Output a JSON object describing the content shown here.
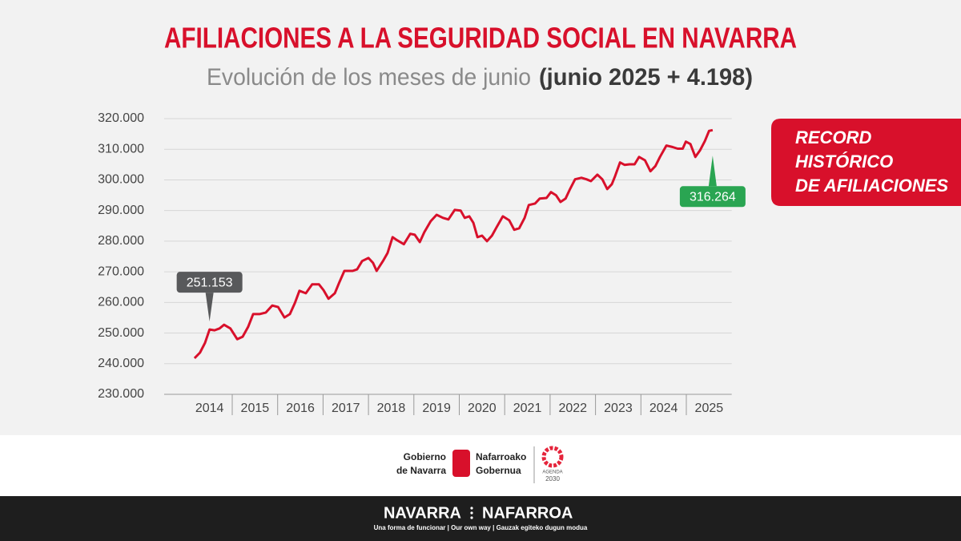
{
  "chart_data": {
    "type": "line",
    "title": "AFILIACIONES A LA SEGURIDAD SOCIAL EN NAVARRA",
    "subtitle": "Evolución de los meses de junio",
    "subtitle_highlight": "(junio 2025 + 4.198)",
    "categories": [
      "2014",
      "2015",
      "2016",
      "2017",
      "2018",
      "2019",
      "2020",
      "2021",
      "2022",
      "2023",
      "2024",
      "2025"
    ],
    "xlim": [
      2014,
      2026
    ],
    "ylim": [
      230000,
      320000
    ],
    "yticks": [
      {
        "value": 230000,
        "label": "230.000"
      },
      {
        "value": 240000,
        "label": "240.000"
      },
      {
        "value": 250000,
        "label": "250.000"
      },
      {
        "value": 260000,
        "label": "260.000"
      },
      {
        "value": 270000,
        "label": "270.000"
      },
      {
        "value": 280000,
        "label": "280.000"
      },
      {
        "value": 290000,
        "label": "290.000"
      },
      {
        "value": 300000,
        "label": "300.000"
      },
      {
        "value": 310000,
        "label": "310.000"
      },
      {
        "value": 320000,
        "label": "320.000"
      }
    ],
    "grid": true,
    "series": [
      {
        "color": "#d8102b",
        "x": [
          2014.17,
          2014.29,
          2014.4,
          2014.5,
          2014.61,
          2014.72,
          2014.82,
          2014.96,
          2015.11,
          2015.23,
          2015.35,
          2015.46,
          2015.6,
          2015.74,
          2015.88,
          2016.01,
          2016.15,
          2016.27,
          2016.38,
          2016.48,
          2016.62,
          2016.76,
          2016.91,
          2017.01,
          2017.12,
          2017.26,
          2017.36,
          2017.47,
          2017.65,
          2017.75,
          2017.86,
          2018.0,
          2018.1,
          2018.18,
          2018.32,
          2018.42,
          2018.53,
          2018.63,
          2018.78,
          2018.92,
          2019.02,
          2019.13,
          2019.23,
          2019.37,
          2019.5,
          2019.64,
          2019.76,
          2019.9,
          2020.03,
          2020.12,
          2020.22,
          2020.31,
          2020.4,
          2020.5,
          2020.61,
          2020.72,
          2020.82,
          2020.96,
          2021.1,
          2021.21,
          2021.32,
          2021.44,
          2021.53,
          2021.67,
          2021.77,
          2021.92,
          2022.02,
          2022.13,
          2022.23,
          2022.34,
          2022.44,
          2022.55,
          2022.69,
          2022.8,
          2022.9,
          2023.04,
          2023.15,
          2023.26,
          2023.36,
          2023.43,
          2023.54,
          2023.64,
          2023.75,
          2023.86,
          2023.96,
          2024.09,
          2024.21,
          2024.32,
          2024.42,
          2024.56,
          2024.7,
          2024.81,
          2024.92,
          2024.99,
          2025.09,
          2025.2,
          2025.3,
          2025.41,
          2025.5,
          2025.58
        ],
        "values": [
          241800,
          243600,
          246800,
          251153,
          250900,
          251500,
          252700,
          251500,
          248000,
          248800,
          252000,
          256200,
          256200,
          256700,
          259000,
          258500,
          255100,
          256200,
          259800,
          263800,
          263000,
          265900,
          265900,
          264000,
          261200,
          263000,
          266600,
          270300,
          270300,
          270800,
          273500,
          274500,
          272900,
          270300,
          273500,
          276100,
          281300,
          280300,
          279000,
          282400,
          282100,
          279700,
          282900,
          286500,
          288600,
          287600,
          287100,
          290200,
          290000,
          287600,
          288100,
          286000,
          281300,
          281800,
          280000,
          281800,
          284500,
          288100,
          286800,
          283700,
          284200,
          287600,
          291800,
          292300,
          293900,
          294100,
          296000,
          295000,
          292800,
          293900,
          297000,
          300200,
          300700,
          300200,
          299600,
          301700,
          300200,
          297000,
          298600,
          301200,
          305700,
          304900,
          305100,
          305100,
          307500,
          306400,
          302800,
          304500,
          307500,
          311200,
          310700,
          310200,
          310200,
          312500,
          311700,
          307500,
          309600,
          312700,
          316000,
          316264
        ]
      }
    ],
    "annotations": [
      {
        "x": 2014.5,
        "value": 251153,
        "label": "251.153",
        "color": "#58595b",
        "position": "above"
      },
      {
        "x": 2025.58,
        "value": 316264,
        "label": "316.264",
        "color": "#2aa552",
        "position": "below"
      }
    ],
    "callout": [
      "RECORD",
      "HISTÓRICO",
      "DE AFILIACIONES"
    ],
    "callout_color": "#d8102b"
  },
  "footer": {
    "gov_es": [
      "Gobierno",
      "de Navarra"
    ],
    "gov_eu": [
      "Nafarroako",
      "Gobernua"
    ],
    "agenda": [
      "AGENDA",
      "2030"
    ],
    "brand_left": "NAVARRA",
    "brand_right": "NAFARROA",
    "tagline": "Una forma de funcionar | Our own way | Gauzak egiteko dugun modua"
  }
}
